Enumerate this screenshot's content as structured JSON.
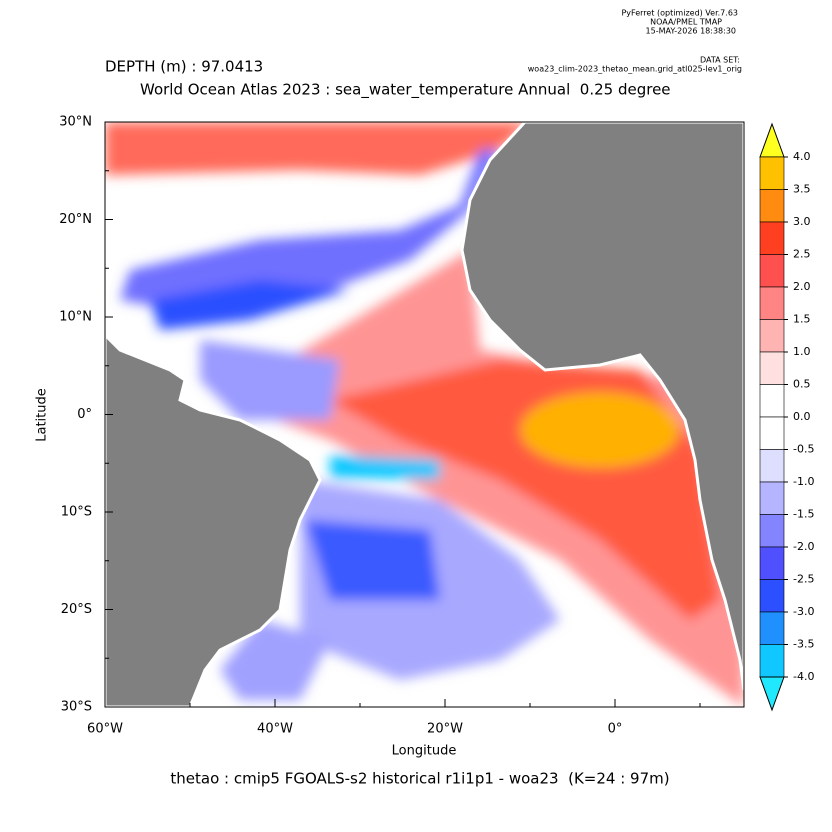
{
  "header": {
    "software": "PyFerret (optimized) Ver.7.63",
    "org": "NOAA/PMEL TMAP",
    "date": "15-MAY-2026 18:38:30",
    "dataset_label": "DATA SET:",
    "dataset": "woa23_clim-2023_thetao_mean.grid_atl025-lev1_orig"
  },
  "depth": "DEPTH (m) : 97.0413",
  "title": "World Ocean Atlas 2023 : sea_water_temperature Annual  0.25 degree",
  "x_axis": {
    "label": "Longitude",
    "ticks": [
      "60°W",
      "40°W",
      "20°W",
      "0°"
    ]
  },
  "y_axis": {
    "label": "Latitude",
    "ticks": [
      "30°N",
      "20°N",
      "10°N",
      "0°",
      "10°S",
      "20°S",
      "30°S"
    ]
  },
  "colorbar": {
    "labels": [
      "4.0",
      "3.5",
      "3.0",
      "2.5",
      "2.0",
      "1.5",
      "1.0",
      "0.5",
      "0.0",
      "-0.5",
      "-1.0",
      "-1.5",
      "-2.0",
      "-2.5",
      "-3.0",
      "-3.5",
      "-4.0"
    ],
    "colors": [
      "#ffff20",
      "#ffc000",
      "#ff8c10",
      "#ff4020",
      "#ff5050",
      "#ff8484",
      "#ffb4b4",
      "#ffe0e0",
      "#ffffff",
      "#ffffff",
      "#dedeff",
      "#b4b4ff",
      "#8484ff",
      "#5050ff",
      "#2c50ff",
      "#2090ff",
      "#10c8ff",
      "#20e8ff"
    ]
  },
  "footer": "thetao : cmip5 FGOALS-s2 historical r1i1p1 - woa23  (K=24 : 97m)"
}
